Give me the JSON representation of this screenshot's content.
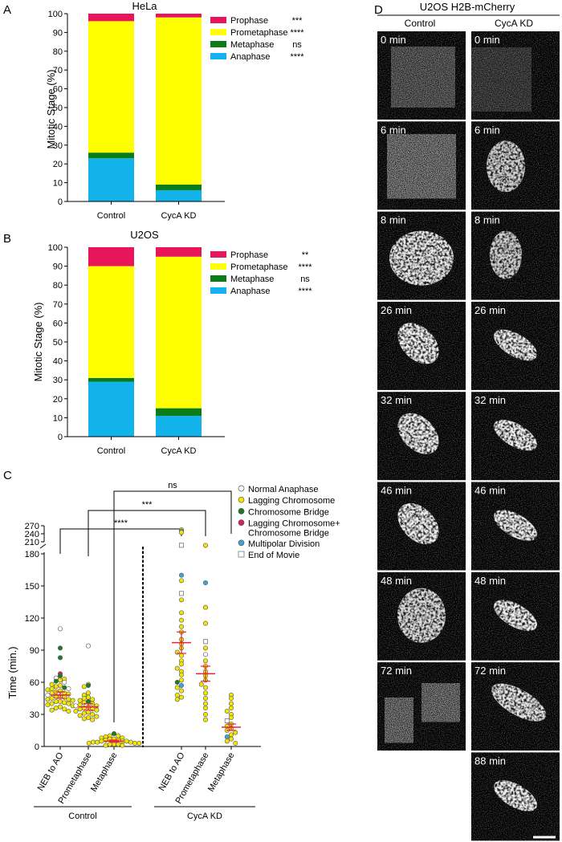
{
  "panel_labels": {
    "A": "A",
    "B": "B",
    "C": "C",
    "D": "D"
  },
  "colors": {
    "prophase": "#e8155a",
    "prometaphase": "#ffff00",
    "metaphase": "#0a7d16",
    "anaphase": "#12b3ea",
    "normal": "#ffffff",
    "lagging": "#f4e600",
    "bridge": "#1b7a23",
    "lagging_bridge": "#d9205d",
    "multipolar": "#3aa6d8",
    "end_of_movie": "#ffffff",
    "mean": "#e8213c"
  },
  "chart_data": [
    {
      "id": "A",
      "type": "bar",
      "stacked": true,
      "title": "HeLa",
      "ylabel": "Mitotic Stage (%)",
      "ylim": [
        0,
        100
      ],
      "yticks": [
        0,
        10,
        20,
        30,
        40,
        50,
        60,
        70,
        80,
        90,
        100
      ],
      "categories": [
        "Control",
        "CycA KD"
      ],
      "series": [
        {
          "name": "Anaphase",
          "values": [
            23,
            6
          ],
          "sig": "****"
        },
        {
          "name": "Metaphase",
          "values": [
            3,
            3
          ],
          "sig": "ns"
        },
        {
          "name": "Prometaphase",
          "values": [
            70,
            89
          ],
          "sig": "****"
        },
        {
          "name": "Prophase",
          "values": [
            4,
            2
          ],
          "sig": "***"
        }
      ]
    },
    {
      "id": "B",
      "type": "bar",
      "stacked": true,
      "title": "U2OS",
      "ylabel": "Mitotic Stage (%)",
      "ylim": [
        0,
        100
      ],
      "yticks": [
        0,
        10,
        20,
        30,
        40,
        50,
        60,
        70,
        80,
        90,
        100
      ],
      "categories": [
        "Control",
        "CycA KD"
      ],
      "series": [
        {
          "name": "Anaphase",
          "values": [
            29,
            11
          ],
          "sig": "****"
        },
        {
          "name": "Metaphase",
          "values": [
            2,
            4
          ],
          "sig": "ns"
        },
        {
          "name": "Prometaphase",
          "values": [
            59,
            80
          ],
          "sig": "****"
        },
        {
          "name": "Prophase",
          "values": [
            10,
            5
          ],
          "sig": "**"
        }
      ]
    },
    {
      "id": "C",
      "type": "scatter",
      "ylabel": "Time (min.)",
      "yticks_lower": [
        0,
        30,
        60,
        90,
        120,
        150,
        180
      ],
      "yticks_upper": [
        210,
        240,
        270
      ],
      "ylim": [
        0,
        270
      ],
      "groups": [
        "Control",
        "CycA KD"
      ],
      "categories": [
        "NEB to AO",
        "Prometaphase",
        "Metaphase",
        "NEB to AO",
        "Prometaphase",
        "Metaphase"
      ],
      "means": [
        48,
        37,
        5,
        97,
        68,
        18
      ],
      "sems": [
        3,
        3,
        1,
        10,
        7,
        3
      ],
      "legend": [
        {
          "name": "Normal Anaphase",
          "marker": "circle",
          "key": "normal"
        },
        {
          "name": "Lagging Chromosome",
          "marker": "circle",
          "key": "lagging"
        },
        {
          "name": "Chromosome Bridge",
          "marker": "circle",
          "key": "bridge"
        },
        {
          "name": "Lagging Chromosome+",
          "name2": "Chromosome Bridge",
          "marker": "circle",
          "key": "lagging_bridge"
        },
        {
          "name": "Multipolar Division",
          "marker": "circle",
          "key": "multipolar"
        },
        {
          "name": "End of Movie",
          "marker": "square",
          "key": "end_of_movie"
        }
      ],
      "significance": [
        {
          "from": 0,
          "to": 3,
          "label": "****"
        },
        {
          "from": 1,
          "to": 4,
          "label": "***"
        },
        {
          "from": 2,
          "to": 5,
          "label": "ns"
        }
      ],
      "points": [
        {
          "cat": 0,
          "values": [
            110,
            92,
            83,
            68,
            66,
            64,
            63,
            62,
            61,
            60,
            58,
            57,
            56,
            55,
            54,
            54,
            53,
            52,
            51,
            50,
            50,
            49,
            48,
            47,
            47,
            46,
            45,
            44,
            44,
            43,
            42,
            42,
            41,
            40,
            40,
            39,
            38,
            37,
            36,
            35,
            34,
            33
          ],
          "types": [
            "normal",
            "bridge",
            "bridge",
            "lagging_bridge",
            "bridge",
            "normal",
            "lagging",
            "lagging",
            "bridge",
            "normal",
            "lagging",
            "lagging",
            "lagging",
            "bridge",
            "lagging",
            "normal",
            "lagging",
            "lagging",
            "lagging",
            "lagging",
            "lagging",
            "lagging",
            "normal",
            "lagging",
            "lagging",
            "lagging",
            "lagging",
            "lagging",
            "lagging",
            "lagging",
            "lagging",
            "lagging",
            "lagging",
            "lagging",
            "lagging",
            "lagging",
            "lagging",
            "lagging",
            "lagging",
            "lagging",
            "lagging",
            "lagging"
          ]
        },
        {
          "cat": 1,
          "values": [
            94,
            58,
            57,
            56,
            50,
            48,
            46,
            45,
            44,
            43,
            42,
            41,
            40,
            39,
            38,
            38,
            37,
            36,
            35,
            35,
            34,
            33,
            32,
            31,
            30,
            29,
            28,
            27,
            26,
            25
          ],
          "types": [
            "normal",
            "lagging",
            "bridge",
            "lagging",
            "lagging",
            "lagging",
            "lagging",
            "lagging",
            "lagging",
            "lagging",
            "bridge",
            "lagging",
            "lagging",
            "lagging",
            "lagging",
            "normal",
            "lagging",
            "lagging",
            "lagging",
            "lagging",
            "lagging",
            "lagging",
            "lagging",
            "lagging",
            "lagging",
            "lagging",
            "lagging",
            "lagging",
            "lagging",
            "lagging"
          ]
        },
        {
          "cat": 2,
          "values": [
            12,
            10,
            10,
            9,
            8,
            8,
            7,
            7,
            6,
            6,
            5,
            5,
            5,
            4,
            4,
            4,
            3,
            3,
            3,
            2,
            2,
            2,
            1,
            1
          ],
          "types": [
            "bridge",
            "lagging",
            "lagging",
            "lagging",
            "lagging",
            "lagging",
            "lagging",
            "lagging",
            "lagging",
            "lagging",
            "lagging",
            "lagging",
            "lagging",
            "lagging",
            "lagging",
            "lagging",
            "lagging",
            "lagging",
            "lagging",
            "lagging",
            "lagging",
            "lagging",
            "lagging",
            "lagging"
          ]
        },
        {
          "cat": 3,
          "values": [
            255,
            250,
            245,
            197,
            160,
            155,
            143,
            137,
            125,
            118,
            112,
            107,
            100,
            96,
            92,
            88,
            85,
            80,
            77,
            73,
            70,
            67,
            62,
            60,
            57,
            55,
            52,
            48,
            46,
            44
          ],
          "types": [
            "lagging",
            "multipolar",
            "lagging",
            "end_of_movie",
            "multipolar",
            "lagging",
            "end_of_movie",
            "lagging",
            "lagging",
            "lagging",
            "lagging",
            "lagging",
            "lagging",
            "lagging",
            "lagging",
            "lagging",
            "lagging",
            "lagging",
            "lagging",
            "lagging",
            "lagging",
            "lagging",
            "lagging",
            "bridge",
            "multipolar",
            "lagging",
            "lagging",
            "lagging",
            "lagging",
            "lagging"
          ]
        },
        {
          "cat": 4,
          "values": [
            197,
            153,
            130,
            115,
            98,
            92,
            86,
            80,
            75,
            70,
            66,
            62,
            58,
            55,
            50,
            45,
            40,
            36,
            30,
            25
          ],
          "types": [
            "lagging",
            "multipolar",
            "lagging",
            "lagging",
            "end_of_movie",
            "lagging",
            "normal",
            "lagging",
            "lagging",
            "lagging",
            "lagging",
            "lagging",
            "lagging",
            "lagging",
            "lagging",
            "lagging",
            "lagging",
            "lagging",
            "lagging",
            "lagging"
          ]
        },
        {
          "cat": 5,
          "values": [
            48,
            45,
            40,
            36,
            33,
            30,
            27,
            24,
            21,
            19,
            17,
            15,
            13,
            11,
            9,
            7,
            5,
            3
          ],
          "types": [
            "lagging",
            "lagging",
            "lagging",
            "lagging",
            "lagging",
            "lagging",
            "lagging",
            "end_of_movie",
            "lagging",
            "lagging",
            "lagging",
            "lagging",
            "lagging",
            "lagging",
            "multipolar",
            "lagging",
            "lagging",
            "lagging"
          ]
        }
      ]
    }
  ],
  "microscopy": {
    "title": "U2OS H2B-mCherry",
    "columns": [
      "Control",
      "CycA KD"
    ],
    "control_times": [
      "0 min",
      "6 min",
      "8 min",
      "26 min",
      "32 min",
      "46 min",
      "48 min",
      "72 min"
    ],
    "cyca_times": [
      "0 min",
      "6 min",
      "8 min",
      "26 min",
      "32 min",
      "46 min",
      "48 min",
      "72 min",
      "88 min"
    ]
  }
}
